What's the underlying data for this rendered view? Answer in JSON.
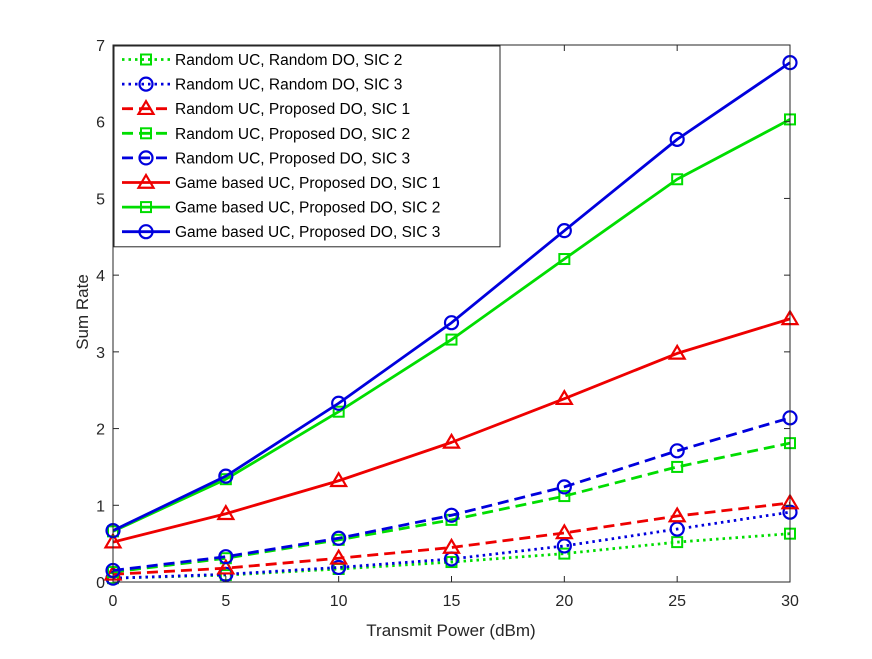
{
  "chart_data": {
    "type": "line",
    "title": "",
    "xlabel": "Transmit Power (dBm)",
    "ylabel": "Sum Rate",
    "xlim": [
      0,
      30
    ],
    "ylim": [
      0,
      7
    ],
    "x": [
      0,
      5,
      10,
      15,
      20,
      25,
      30
    ],
    "xticks": [
      "0",
      "5",
      "10",
      "15",
      "20",
      "25",
      "30"
    ],
    "yticks": [
      "0",
      "1",
      "2",
      "3",
      "4",
      "5",
      "6",
      "7"
    ],
    "grid": false,
    "legend_position": "top-left",
    "series": [
      {
        "name": "Random UC, Random DO, SIC 2",
        "color": "#00dd00",
        "dash": "dotted",
        "marker": "square",
        "values": [
          0.05,
          0.09,
          0.17,
          0.26,
          0.37,
          0.52,
          0.63
        ]
      },
      {
        "name": "Random UC, Random DO, SIC 3",
        "color": "#0000dd",
        "dash": "dotted",
        "marker": "circle",
        "values": [
          0.05,
          0.1,
          0.19,
          0.3,
          0.47,
          0.69,
          0.91
        ]
      },
      {
        "name": "Random UC, Proposed DO, SIC 1",
        "color": "#ee0000",
        "dash": "dashed",
        "marker": "triangle",
        "values": [
          0.1,
          0.18,
          0.31,
          0.45,
          0.64,
          0.86,
          1.03
        ]
      },
      {
        "name": "Random UC, Proposed DO, SIC 2",
        "color": "#00dd00",
        "dash": "dashed",
        "marker": "square",
        "values": [
          0.13,
          0.31,
          0.55,
          0.81,
          1.12,
          1.5,
          1.81
        ]
      },
      {
        "name": "Random UC, Proposed DO, SIC 3",
        "color": "#0000dd",
        "dash": "dashed",
        "marker": "circle",
        "values": [
          0.15,
          0.33,
          0.57,
          0.87,
          1.24,
          1.71,
          2.14
        ]
      },
      {
        "name": "Game based UC, Proposed DO, SIC 1",
        "color": "#ee0000",
        "dash": "solid",
        "marker": "triangle",
        "values": [
          0.52,
          0.89,
          1.32,
          1.82,
          2.39,
          2.98,
          3.43
        ]
      },
      {
        "name": "Game based UC, Proposed DO, SIC 2",
        "color": "#00dd00",
        "dash": "solid",
        "marker": "square",
        "values": [
          0.66,
          1.34,
          2.22,
          3.16,
          4.21,
          5.25,
          6.03
        ]
      },
      {
        "name": "Game based UC, Proposed DO, SIC 3",
        "color": "#0000dd",
        "dash": "solid",
        "marker": "circle",
        "values": [
          0.67,
          1.38,
          2.33,
          3.38,
          4.58,
          5.77,
          6.77
        ]
      }
    ]
  }
}
